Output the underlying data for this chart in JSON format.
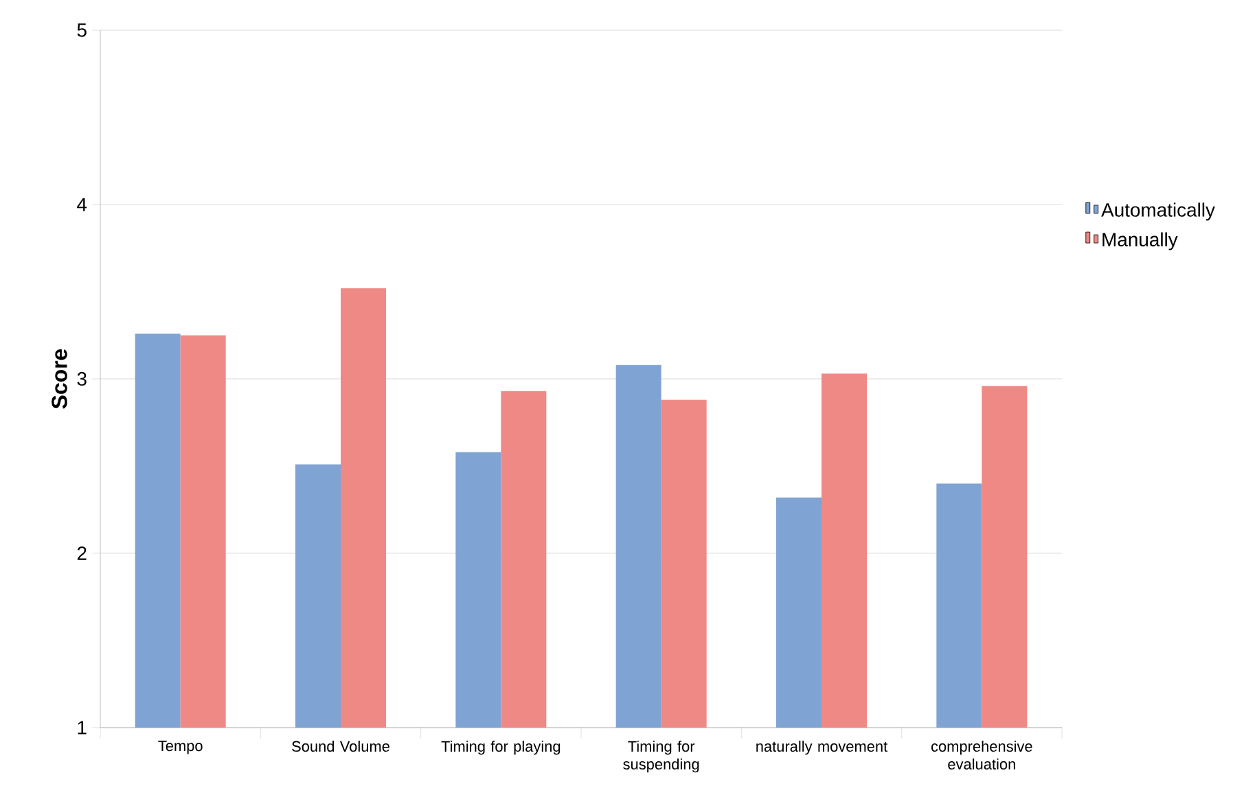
{
  "chart_data": {
    "type": "bar",
    "ylabel": "Score",
    "categories": [
      "Tempo",
      "Sound Volume",
      "Timing for playing",
      "Timing for suspending",
      "naturally movement",
      "comprehensive evaluation"
    ],
    "series": [
      {
        "name": "Automatically",
        "color": "#7fa3d3",
        "values": [
          3.26,
          2.51,
          2.58,
          3.08,
          2.32,
          2.4
        ]
      },
      {
        "name": "Manually",
        "color": "#ee8985",
        "values": [
          3.25,
          3.52,
          2.93,
          2.88,
          3.03,
          2.96
        ]
      }
    ],
    "ylim": [
      1,
      5
    ],
    "yticks": [
      1,
      2,
      3,
      4,
      5
    ],
    "grid": "y",
    "legend": "right"
  }
}
